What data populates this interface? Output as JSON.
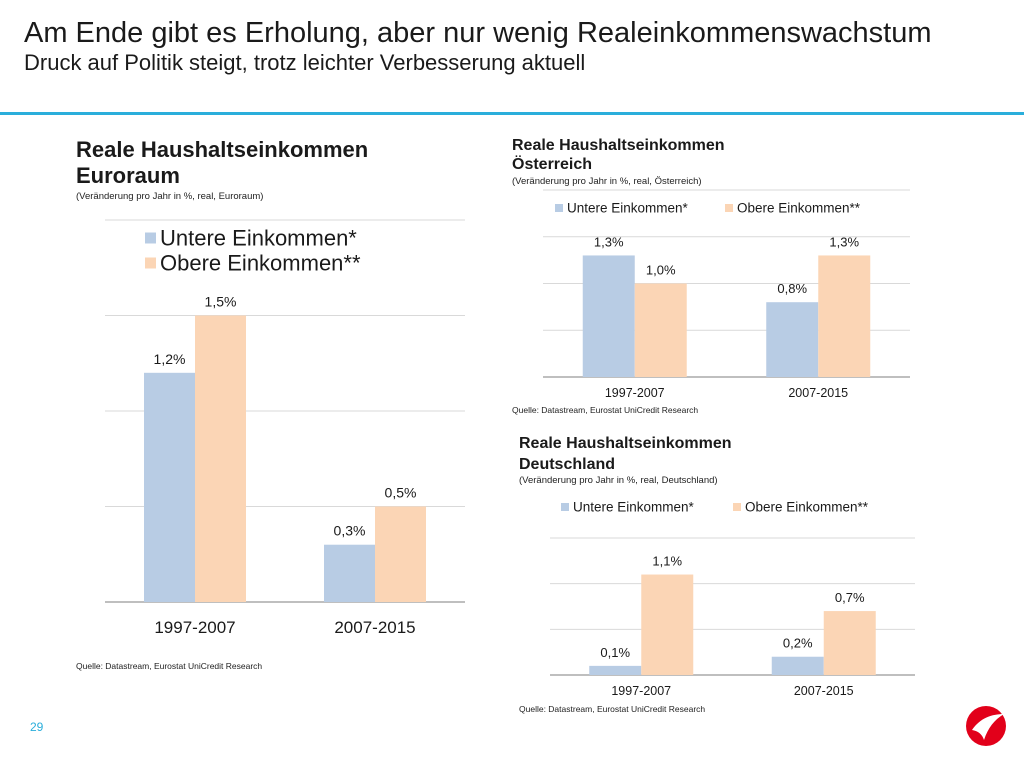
{
  "header": {
    "title": "Am Ende gibt es Erholung, aber nur wenig Realeinkommenswachstum",
    "subtitle": "Druck auf Politik steigt, trotz leichter Verbesserung aktuell"
  },
  "page_number": "29",
  "colors": {
    "accent": "#2aaedb",
    "lower": "#b8cce4",
    "upper": "#fbd5b5",
    "logo": "#e2001a"
  },
  "chart_data": [
    {
      "id": "euro",
      "type": "bar",
      "title": "Reale Haushaltseinkommen",
      "title_line2": "Euroraum",
      "note": "(Veränderung pro Jahr in %, real, Euroraum)",
      "source": "Quelle: Datastream, Eurostat UniCredit Research",
      "categories": [
        "1997-2007",
        "2007-2015"
      ],
      "series": [
        {
          "name": "Untere Einkommen*",
          "values": [
            1.2,
            0.3
          ],
          "labels": [
            "1,2%",
            "0,3%"
          ]
        },
        {
          "name": "Obere Einkommen**",
          "values": [
            1.5,
            0.5
          ],
          "labels": [
            "1,5%",
            "0,5%"
          ]
        }
      ],
      "ylim": [
        0,
        2.0
      ],
      "grid": true,
      "legend": "top-left"
    },
    {
      "id": "at",
      "type": "bar",
      "title": "Reale Haushaltseinkommen",
      "title_line2": "Österreich",
      "note": "(Veränderung  pro  Jahr  in  %,  real,  Österreich)",
      "source": "Quelle: Datastream, Eurostat UniCredit Research",
      "categories": [
        "1997-2007",
        "2007-2015"
      ],
      "series": [
        {
          "name": "Untere Einkommen*",
          "values": [
            1.3,
            0.8
          ],
          "labels": [
            "1,3%",
            "0,8%"
          ]
        },
        {
          "name": "Obere Einkommen**",
          "values": [
            1.0,
            1.3
          ],
          "labels": [
            "1,0%",
            "1,3%"
          ]
        }
      ],
      "ylim": [
        0,
        2.0
      ],
      "grid": true,
      "legend": "top"
    },
    {
      "id": "de",
      "type": "bar",
      "title": "Reale Haushaltseinkommen",
      "title_line2": "Deutschland",
      "note": "(Veränderung  pro  Jahr  in  %,  real,  Deutschland)",
      "source": "Quelle: Datastream, Eurostat UniCredit Research",
      "categories": [
        "1997-2007",
        "2007-2015"
      ],
      "series": [
        {
          "name": "Untere Einkommen*",
          "values": [
            0.1,
            0.2
          ],
          "labels": [
            "0,1%",
            "0,2%"
          ]
        },
        {
          "name": "Obere Einkommen**",
          "values": [
            1.1,
            0.7
          ],
          "labels": [
            "1,1%",
            "0,7%"
          ]
        }
      ],
      "ylim": [
        0,
        1.5
      ],
      "grid": true,
      "legend": "top"
    }
  ]
}
